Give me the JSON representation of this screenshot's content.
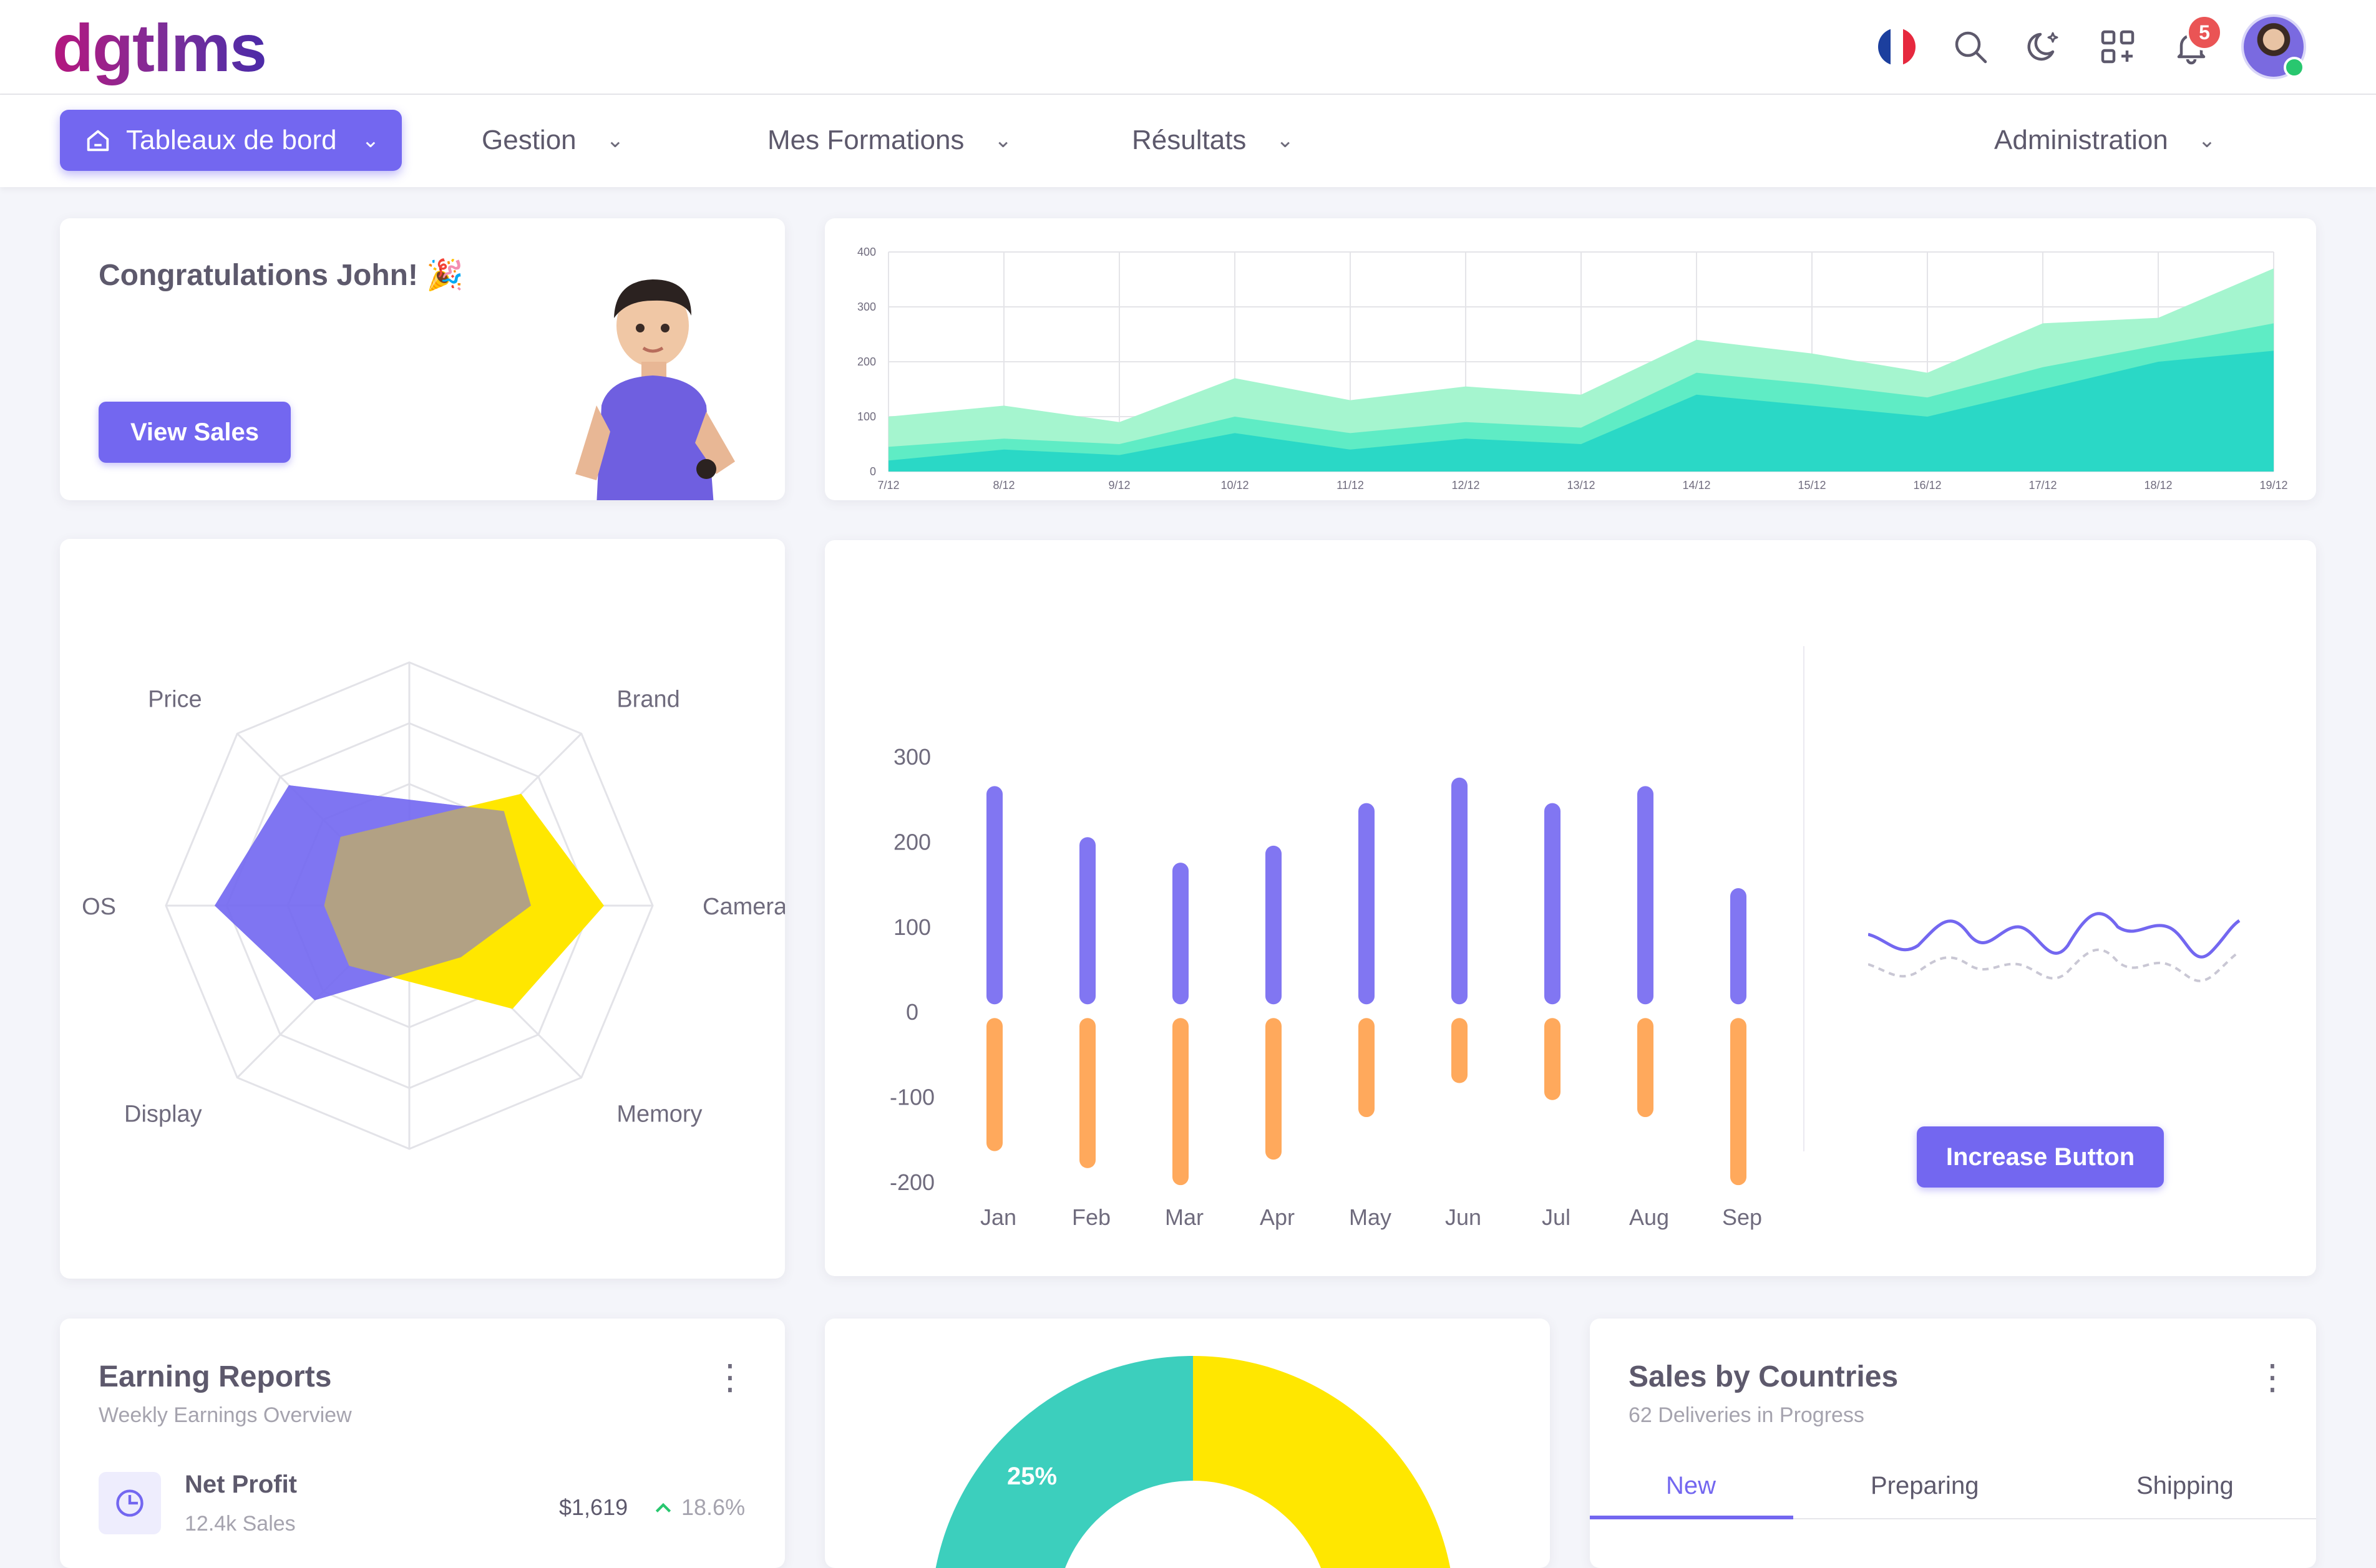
{
  "brand": {
    "logo": "dgtlms"
  },
  "header": {
    "notification_count": "5",
    "language_flag": "fr"
  },
  "nav": {
    "items": [
      {
        "label": "Tableaux de bord",
        "active": true
      },
      {
        "label": "Gestion"
      },
      {
        "label": "Mes Formations"
      },
      {
        "label": "Résultats"
      },
      {
        "label": "Administration"
      }
    ]
  },
  "congrats": {
    "title": "Congratulations John! 🎉",
    "button": "View Sales"
  },
  "colors": {
    "primary": "#7367f0",
    "teal": "#2ad8c6",
    "yellow": "#ffe700",
    "orange": "#ffa95c"
  },
  "area_chart": {
    "chart_data": {
      "type": "area",
      "x": [
        "7/12",
        "8/12",
        "9/12",
        "10/12",
        "11/12",
        "12/12",
        "13/12",
        "14/12",
        "15/12",
        "16/12",
        "17/12",
        "18/12",
        "19/12"
      ],
      "y_ticks": [
        "400",
        "300",
        "200",
        "100",
        "0"
      ],
      "ylim": [
        0,
        400
      ],
      "series": [
        {
          "values": [
            20,
            40,
            30,
            70,
            40,
            60,
            50,
            140,
            120,
            100,
            150,
            200,
            220
          ]
        },
        {
          "values": [
            45,
            60,
            50,
            100,
            70,
            90,
            80,
            180,
            160,
            135,
            190,
            230,
            270
          ]
        },
        {
          "values": [
            100,
            120,
            90,
            170,
            130,
            155,
            140,
            240,
            215,
            180,
            270,
            280,
            370
          ]
        }
      ]
    }
  },
  "radar_chart": {
    "chart_data": {
      "type": "radar",
      "categories": [
        "Price",
        "Brand",
        "Camera",
        "Memory",
        "Display",
        "OS"
      ],
      "rmax": 100,
      "series": [
        {
          "values": [
            70,
            55,
            50,
            30,
            55,
            80
          ],
          "color": "#7367f0"
        },
        {
          "values": [
            40,
            65,
            80,
            60,
            35,
            35
          ],
          "color": "#ffe700"
        }
      ]
    }
  },
  "bar_chart": {
    "chart_data": {
      "type": "bar",
      "categories": [
        "Jan",
        "Feb",
        "Mar",
        "Apr",
        "May",
        "Jun",
        "Jul",
        "Aug",
        "Sep"
      ],
      "y_ticks": [
        "300",
        "200",
        "100",
        "0",
        "-100",
        "-200"
      ],
      "ylim": [
        -200,
        300
      ],
      "series": [
        {
          "values": [
            255,
            195,
            165,
            185,
            235,
            265,
            235,
            255,
            135
          ]
        },
        {
          "values": [
            -155,
            -175,
            -195,
            -165,
            -115,
            -75,
            -95,
            -115,
            -195
          ]
        }
      ]
    },
    "button": "Increase Button"
  },
  "earning_reports": {
    "title": "Earning Reports",
    "subtitle": "Weekly Earnings Overview",
    "rows": [
      {
        "label": "Net Profit",
        "sub": "12.4k Sales",
        "amount": "$1,619",
        "change": "18.6%"
      }
    ]
  },
  "donut": {
    "chart_data": {
      "type": "pie",
      "label": "25%",
      "values": [
        25,
        25
      ]
    }
  },
  "sales_by_countries": {
    "title": "Sales by Countries",
    "subtitle": "62 Deliveries in Progress",
    "tabs": [
      "New",
      "Preparing",
      "Shipping"
    ]
  }
}
